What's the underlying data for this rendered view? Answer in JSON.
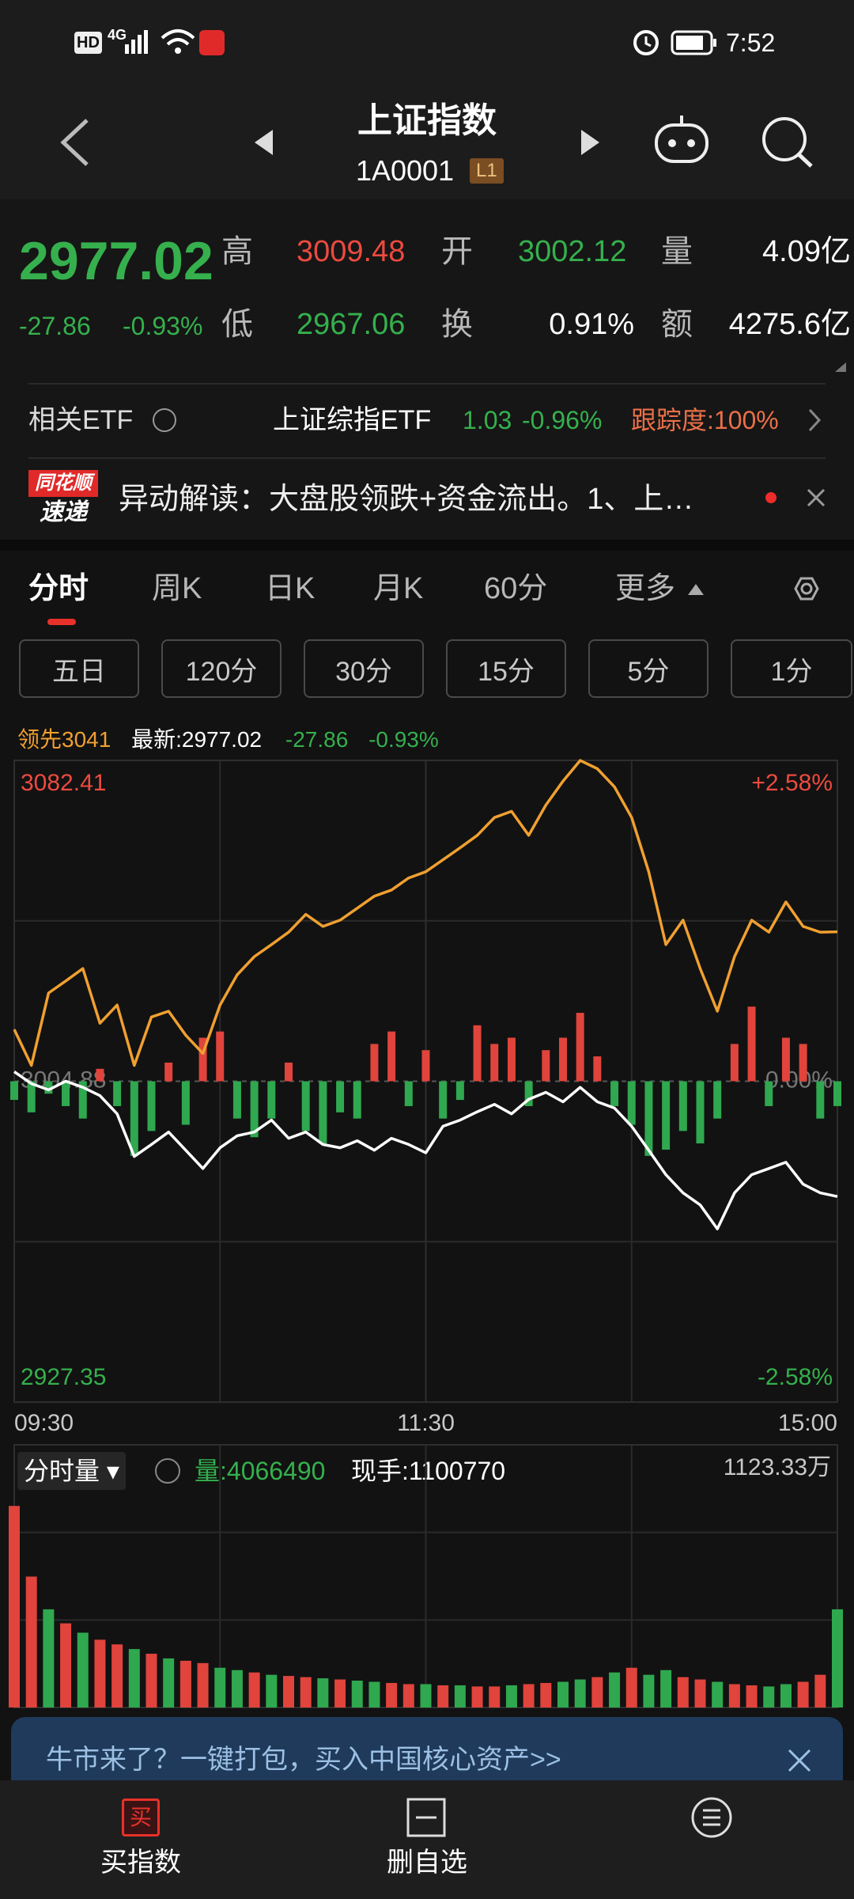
{
  "status_bar": {
    "hd": "HD",
    "network": "4G",
    "time": "7:52"
  },
  "header": {
    "title": "上证指数",
    "code": "1A0001",
    "level": "L1"
  },
  "quote": {
    "price": "2977.02",
    "change": "-27.86",
    "change_pct": "-0.93%",
    "fields": [
      {
        "label": "高",
        "value": "3009.48"
      },
      {
        "label": "开",
        "value": "3002.12"
      },
      {
        "label": "量",
        "value": "4.09亿"
      },
      {
        "label": "低",
        "value": "2967.06"
      },
      {
        "label": "换",
        "value": "0.91%"
      },
      {
        "label": "额",
        "value": "4275.6亿"
      }
    ]
  },
  "etf": {
    "label": "相关ETF",
    "name": "上证综指ETF",
    "price": "1.03",
    "change": "-0.96%",
    "tracking": "跟踪度:100%"
  },
  "news": {
    "badge_top": "同花顺",
    "badge_bottom": "速递",
    "text": "异动解读：大盘股领跌+资金流出。1、上…"
  },
  "tabs": [
    "分时",
    "周K",
    "日K",
    "月K",
    "60分",
    "更多"
  ],
  "sub_tabs": [
    "五日",
    "120分",
    "30分",
    "15分",
    "5分",
    "1分"
  ],
  "chart_data": [
    {
      "type": "line",
      "x": [
        0,
        5,
        10,
        15,
        20,
        25,
        30,
        35,
        40,
        45,
        50,
        55,
        60,
        65,
        70,
        75,
        80,
        85,
        90,
        95,
        100,
        105,
        110,
        115,
        120,
        125,
        130,
        135,
        140,
        145,
        150,
        155,
        160,
        165,
        170,
        175,
        180,
        185,
        190,
        195,
        200,
        205,
        210,
        215,
        220,
        225,
        230,
        235,
        240
      ],
      "xlim": [
        0,
        240
      ],
      "xticks": [
        {
          "value": 0,
          "label": "09:30"
        },
        {
          "value": 120,
          "label": "11:30"
        },
        {
          "value": 240,
          "label": "15:00"
        }
      ],
      "ylim": [
        2927.35,
        3082.41
      ],
      "yticks": [
        2927.35,
        3004.88,
        3082.41
      ],
      "y2lim": [
        -2.58,
        2.58
      ],
      "y2ticks": [
        {
          "value": -2.58,
          "label": "-2.58%"
        },
        {
          "value": 0,
          "label": "0.00%"
        },
        {
          "value": 2.58,
          "label": "+2.58%"
        }
      ],
      "series": [
        {
          "name": "领先",
          "color": "#f0a030",
          "values": [
            3017.4,
            3008.7,
            3026.2,
            3029.1,
            3032.1,
            3018.9,
            3023.3,
            3008.7,
            3020.4,
            3021.8,
            3016.0,
            3011.6,
            3023.3,
            3030.6,
            3035.0,
            3037.9,
            3040.9,
            3045.2,
            3042.3,
            3043.8,
            3046.7,
            3049.6,
            3051.1,
            3054.0,
            3055.5,
            3058.4,
            3061.3,
            3064.3,
            3068.6,
            3070.1,
            3064.3,
            3071.6,
            3077.4,
            3082.4,
            3080.4,
            3076.0,
            3068.6,
            3055.5,
            3037.9,
            3043.8,
            3032.1,
            3021.8,
            3035.0,
            3043.8,
            3040.9,
            3048.2,
            3042.3,
            3040.9,
            3041
          ]
        },
        {
          "name": "最新:",
          "color": "#ffffff",
          "values": [
            3007.2,
            3004.3,
            3002.8,
            3004.9,
            3003.4,
            3001.4,
            2997.0,
            2986.7,
            2989.6,
            2992.6,
            2988.2,
            2983.8,
            2988.8,
            2991.7,
            2992.6,
            2995.5,
            2991.1,
            2992.6,
            2989.6,
            2988.8,
            2990.5,
            2988.2,
            2991.1,
            2989.6,
            2987.6,
            2994.0,
            2995.5,
            2997.5,
            2999.3,
            2997.0,
            3000.5,
            3002.2,
            2999.9,
            3003.4,
            2999.9,
            2998.4,
            2994.0,
            2988.2,
            2982.3,
            2977.9,
            2975.0,
            2969.2,
            2977.9,
            2982.3,
            2983.8,
            2985.3,
            2980.0,
            2977.9,
            2977.02
          ]
        },
        {
          "type": "bar",
          "axis": "y2",
          "colors": {
            "up": "#e0443c",
            "down": "#2fa84f"
          },
          "values": [
            -0.15,
            -0.25,
            -0.1,
            -0.2,
            -0.3,
            0.1,
            -0.2,
            -0.6,
            -0.4,
            0.15,
            -0.35,
            0.35,
            0.4,
            -0.3,
            -0.45,
            -0.3,
            0.15,
            -0.4,
            -0.5,
            -0.25,
            -0.3,
            0.3,
            0.4,
            -0.2,
            0.25,
            -0.3,
            -0.15,
            0.45,
            0.3,
            0.35,
            -0.2,
            0.25,
            0.35,
            0.55,
            0.2,
            -0.2,
            -0.35,
            -0.6,
            -0.55,
            -0.4,
            -0.5,
            -0.3,
            0.3,
            0.6,
            -0.2,
            0.35,
            0.3,
            -0.3,
            -0.2
          ]
        }
      ]
    },
    {
      "type": "bar",
      "title": "分时量",
      "volume_label": "量:4066490",
      "current_label": "现手:1100770",
      "x": [
        0,
        5,
        10,
        15,
        20,
        25,
        30,
        35,
        40,
        45,
        50,
        55,
        60,
        65,
        70,
        75,
        80,
        85,
        90,
        95,
        100,
        105,
        110,
        115,
        120,
        125,
        130,
        135,
        140,
        145,
        150,
        155,
        160,
        165,
        170,
        175,
        180,
        185,
        190,
        195,
        200,
        205,
        210,
        215,
        220,
        225,
        230,
        235,
        240
      ],
      "xlim": [
        0,
        240
      ],
      "ylim": [
        0,
        1123.33
      ],
      "yticks": [
        {
          "value": 1123.33,
          "label": "1123.33万"
        }
      ],
      "colors": [
        "#e0443c",
        "#2fa84f"
      ],
      "color_index": [
        0,
        0,
        1,
        0,
        1,
        0,
        0,
        1,
        0,
        1,
        0,
        0,
        1,
        1,
        0,
        1,
        0,
        0,
        1,
        0,
        1,
        1,
        0,
        0,
        1,
        0,
        1,
        0,
        0,
        1,
        0,
        0,
        1,
        1,
        0,
        1,
        0,
        1,
        1,
        0,
        0,
        1,
        0,
        0,
        1,
        1,
        0,
        0,
        1
      ],
      "values": [
        862,
        560,
        420,
        360,
        320,
        290,
        270,
        250,
        230,
        210,
        200,
        190,
        170,
        160,
        150,
        140,
        135,
        130,
        125,
        120,
        115,
        110,
        105,
        100,
        100,
        95,
        95,
        90,
        90,
        95,
        100,
        105,
        110,
        120,
        130,
        150,
        170,
        140,
        160,
        130,
        120,
        110,
        100,
        95,
        90,
        100,
        110,
        140,
        420
      ]
    }
  ],
  "banner": {
    "text": "牛市来了？一键打包，买入中国核心资产>>"
  },
  "nav": [
    {
      "icon": "买",
      "label": "买指数"
    },
    {
      "label": "删自选"
    }
  ]
}
